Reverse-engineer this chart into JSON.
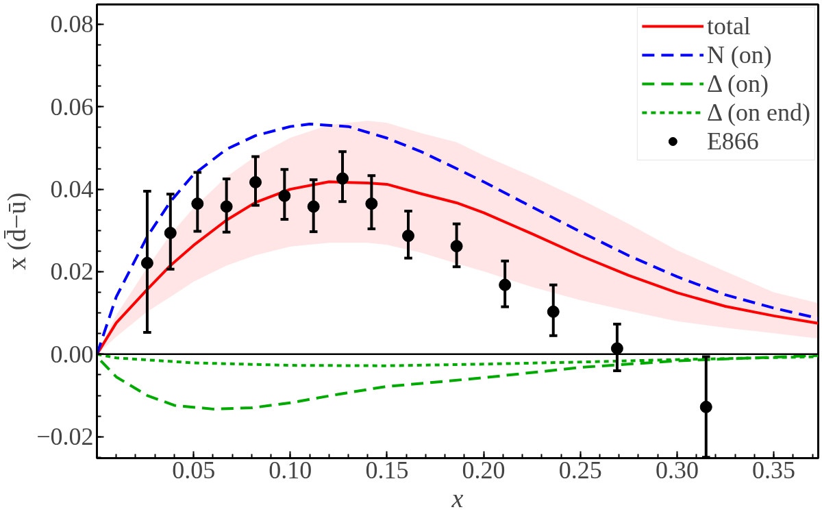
{
  "chart_data": {
    "type": "line",
    "xlabel": "x",
    "ylabel": "x (d̄−ū)",
    "xlim": [
      0,
      0.373
    ],
    "ylim": [
      -0.0252,
      0.0848
    ],
    "xticks": [
      {
        "value": 0.05,
        "label": "0.05"
      },
      {
        "value": 0.1,
        "label": "0.10"
      },
      {
        "value": 0.15,
        "label": "0.15"
      },
      {
        "value": 0.2,
        "label": "0.20"
      },
      {
        "value": 0.25,
        "label": "0.25"
      },
      {
        "value": 0.3,
        "label": "0.30"
      },
      {
        "value": 0.35,
        "label": "0.35"
      }
    ],
    "yticks": [
      {
        "value": -0.02,
        "label": "−0.02"
      },
      {
        "value": 0,
        "label": "0.00"
      },
      {
        "value": 0.02,
        "label": "0.02"
      },
      {
        "value": 0.04,
        "label": "0.04"
      },
      {
        "value": 0.06,
        "label": "0.06"
      },
      {
        "value": 0.08,
        "label": "0.08"
      }
    ],
    "grid": false,
    "legend": "top right",
    "ref_lines": [
      {
        "axis": "y",
        "value": 0,
        "color": "#000000"
      }
    ],
    "series": [
      {
        "name": "total",
        "color": "#ff0000",
        "line_style": "solid",
        "x": [
          0,
          0.01,
          0.026,
          0.038,
          0.05,
          0.067,
          0.082,
          0.1,
          0.12,
          0.14,
          0.15,
          0.1677,
          0.186,
          0.2,
          0.225,
          0.25,
          0.275,
          0.3,
          0.325,
          0.35,
          0.373
        ],
        "values": [
          0,
          0.0076,
          0.0157,
          0.0215,
          0.0264,
          0.0325,
          0.0368,
          0.04,
          0.0418,
          0.0415,
          0.0412,
          0.0389,
          0.0367,
          0.0343,
          0.0292,
          0.0239,
          0.0191,
          0.0149,
          0.0116,
          0.0093,
          0.0075
        ],
        "upper": [
          0,
          0.0095,
          0.021,
          0.029,
          0.0355,
          0.043,
          0.048,
          0.0525,
          0.0556,
          0.0566,
          0.0561,
          0.0536,
          0.0514,
          0.0482,
          0.0431,
          0.0376,
          0.0316,
          0.0252,
          0.0201,
          0.015,
          0.0124
        ],
        "lower": [
          0,
          0.0042,
          0.0103,
          0.0139,
          0.0176,
          0.0215,
          0.024,
          0.0261,
          0.027,
          0.027,
          0.0265,
          0.0246,
          0.022,
          0.0201,
          0.0163,
          0.0131,
          0.0105,
          0.008,
          0.0064,
          0.0051,
          0.0038
        ]
      },
      {
        "name": "N (on)",
        "color": "#0000ff",
        "line_style": "dashed",
        "x": [
          0,
          0.01,
          0.026,
          0.038,
          0.05,
          0.067,
          0.082,
          0.1,
          0.11,
          0.13,
          0.15,
          0.1677,
          0.186,
          0.2,
          0.225,
          0.25,
          0.275,
          0.3,
          0.325,
          0.35,
          0.373
        ],
        "values": [
          0,
          0.0139,
          0.0285,
          0.037,
          0.0436,
          0.0497,
          0.053,
          0.0552,
          0.0558,
          0.0552,
          0.0524,
          0.0491,
          0.045,
          0.0418,
          0.0357,
          0.0297,
          0.0239,
          0.0188,
          0.0144,
          0.0112,
          0.0087
        ]
      },
      {
        "name": "Δ (on)",
        "color": "#00aa00",
        "line_style": "dashed",
        "x": [
          0.002,
          0.01,
          0.026,
          0.04,
          0.06,
          0.08,
          0.1,
          0.125,
          0.15,
          0.1677,
          0.2,
          0.25,
          0.3,
          0.373
        ],
        "values": [
          -0.0016,
          -0.0055,
          -0.01,
          -0.0124,
          -0.0133,
          -0.013,
          -0.0118,
          -0.0097,
          -0.0078,
          -0.0071,
          -0.0057,
          -0.0032,
          -0.0016,
          -0.0003
        ]
      },
      {
        "name": "Δ (on end)",
        "color": "#00aa00",
        "line_style": "dotted",
        "x": [
          0,
          0.01,
          0.05,
          0.1,
          0.15,
          0.2,
          0.25,
          0.3,
          0.373
        ],
        "values": [
          0,
          -0.0009,
          -0.0021,
          -0.0027,
          -0.0028,
          -0.0024,
          -0.0019,
          -0.0013,
          -0.0006
        ]
      },
      {
        "name": "E866",
        "type": "scatter",
        "color": "#000000",
        "marker": "circle",
        "x": [
          0.026,
          0.038,
          0.052,
          0.067,
          0.082,
          0.097,
          0.112,
          0.127,
          0.142,
          0.161,
          0.186,
          0.211,
          0.236,
          0.269,
          0.315
        ],
        "values": [
          0.0221,
          0.0294,
          0.0365,
          0.0358,
          0.0417,
          0.0384,
          0.0358,
          0.0426,
          0.0365,
          0.0287,
          0.0262,
          0.0168,
          0.0103,
          0.0014,
          -0.0128
        ],
        "errors": [
          [
            0.0053,
            0.0395
          ],
          [
            0.0206,
            0.0388
          ],
          [
            0.0298,
            0.0441
          ],
          [
            0.0296,
            0.0425
          ],
          [
            0.0361,
            0.0479
          ],
          [
            0.0327,
            0.0448
          ],
          [
            0.0297,
            0.0423
          ],
          [
            0.037,
            0.0491
          ],
          [
            0.0304,
            0.0433
          ],
          [
            0.0233,
            0.0347
          ],
          [
            0.0212,
            0.0316
          ],
          [
            0.0115,
            0.0226
          ],
          [
            0.0045,
            0.0168
          ],
          [
            -0.004,
            0.0073
          ],
          [
            -0.025,
            -0.0006
          ]
        ]
      }
    ]
  }
}
